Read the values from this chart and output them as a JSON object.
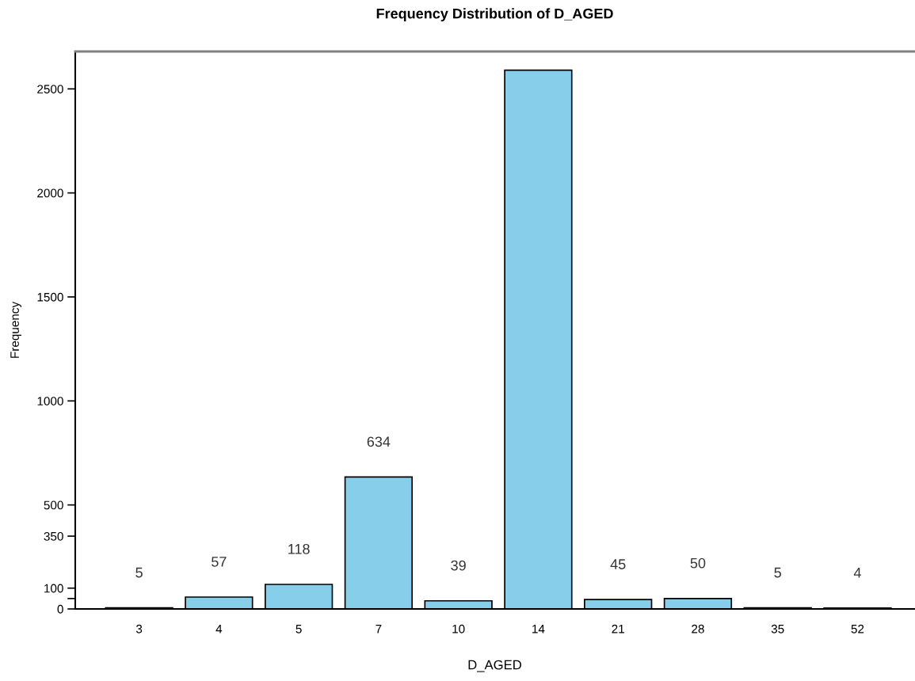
{
  "chart_data": {
    "type": "bar",
    "title": "Frequency Distribution of D_AGED",
    "xlabel": "D_AGED",
    "ylabel": "Frequency",
    "categories": [
      "3",
      "4",
      "5",
      "7",
      "10",
      "14",
      "21",
      "28",
      "35",
      "52"
    ],
    "values": [
      5,
      57,
      118,
      634,
      39,
      2590,
      45,
      50,
      5,
      4
    ],
    "value_labels": [
      "5",
      "57",
      "118",
      "634",
      "39",
      null,
      "45",
      "50",
      "5",
      "4"
    ],
    "color": "#87ceeb",
    "ylim": [
      0,
      2680
    ],
    "yticks": [
      0,
      {
        "value": 50,
        "label": null
      },
      100,
      350,
      500,
      1000,
      1500,
      2000,
      2500
    ],
    "grid": false,
    "legend": false
  }
}
